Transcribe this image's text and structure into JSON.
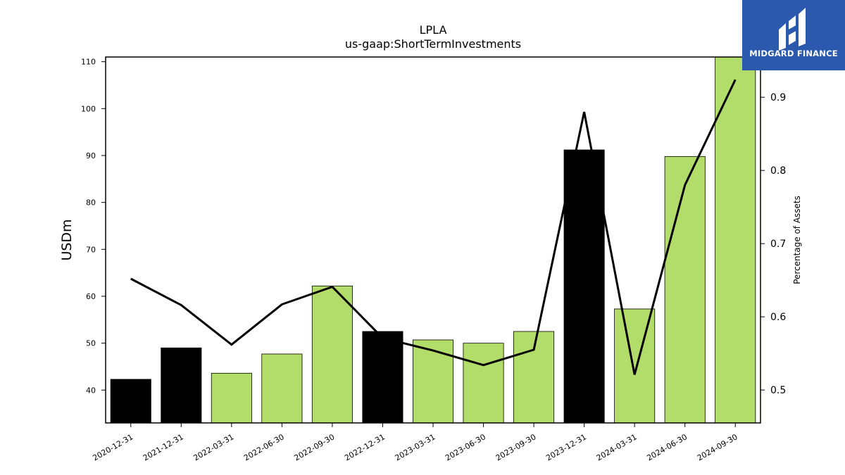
{
  "chart_data": {
    "type": "bar",
    "title": "LPLA",
    "subtitle": "us-gaap:ShortTermInvestments",
    "ylabel": "USDm",
    "y2label": "Percentage of Assets",
    "ylim": [
      33,
      111
    ],
    "y2lim": [
      0.455,
      0.955
    ],
    "yticks": [
      40,
      50,
      60,
      70,
      80,
      90,
      100,
      110
    ],
    "y2ticks": [
      0.5,
      0.6,
      0.7,
      0.8,
      0.9
    ],
    "categories": [
      "2020-12-31",
      "2021-12-31",
      "2022-03-31",
      "2022-06-30",
      "2022-09-30",
      "2022-12-31",
      "2023-03-31",
      "2023-06-30",
      "2023-09-30",
      "2023-12-31",
      "2024-03-31",
      "2024-06-30",
      "2024-09-30"
    ],
    "series": [
      {
        "type": "bar",
        "values": [
          42.3,
          49.0,
          43.6,
          47.7,
          62.2,
          52.5,
          50.7,
          50.0,
          52.5,
          91.2,
          57.3,
          89.8,
          111.5
        ],
        "annual": [
          true,
          true,
          false,
          false,
          false,
          true,
          false,
          false,
          false,
          true,
          false,
          false,
          false
        ]
      },
      {
        "type": "line",
        "axis": "right",
        "values": [
          0.652,
          0.616,
          0.562,
          0.617,
          0.641,
          0.571,
          0.554,
          0.534,
          0.555,
          0.88,
          0.521,
          0.78,
          0.924
        ]
      }
    ],
    "colors": {
      "annual_bar": "#000000",
      "quarterly_bar": "#b3dd6b",
      "line": "#000000",
      "bar_edge": "#000000"
    },
    "grid": false,
    "legend": "none"
  },
  "logo": {
    "text": "MIDGARD FINANCE",
    "background": "#2b59ad",
    "icon": "midgard-logo-icon"
  }
}
